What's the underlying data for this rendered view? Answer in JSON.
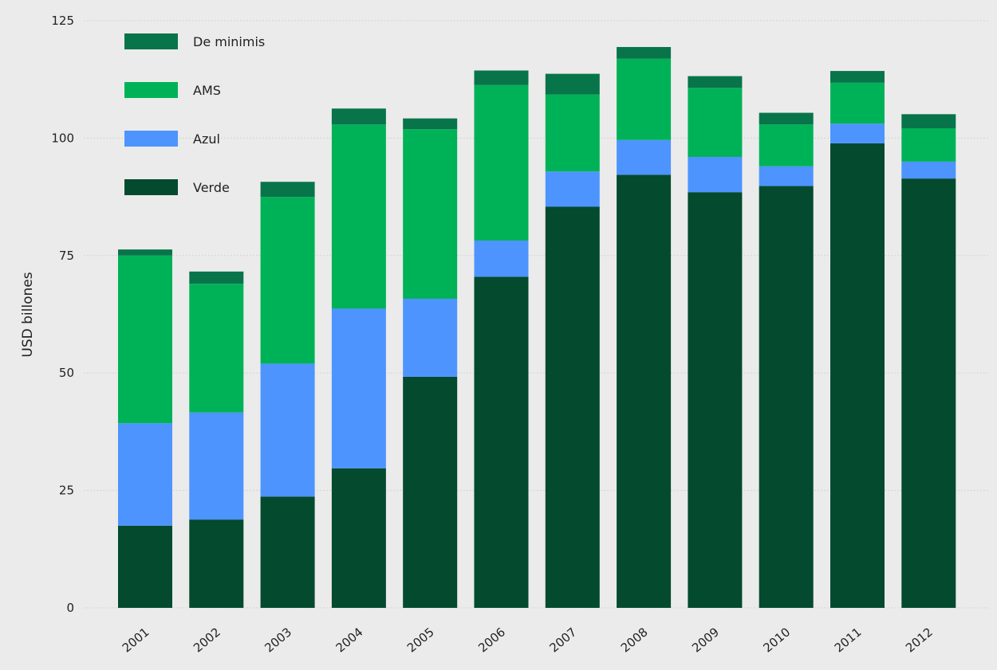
{
  "chart_data": {
    "type": "bar",
    "stacked": true,
    "title": "",
    "xlabel": "",
    "ylabel": "USD billones",
    "ylim": [
      0,
      125
    ],
    "yticks": [
      0,
      25,
      50,
      75,
      100,
      125
    ],
    "grid": true,
    "legend_position": "top-left",
    "categories": [
      "2001",
      "2002",
      "2003",
      "2004",
      "2005",
      "2006",
      "2007",
      "2008",
      "2009",
      "2010",
      "2011",
      "2012"
    ],
    "series": [
      {
        "name": "Verde",
        "color": "#034a2e",
        "values": [
          17.5,
          18.8,
          23.7,
          29.7,
          49.2,
          70.5,
          85.4,
          92.2,
          88.5,
          89.8,
          98.9,
          91.4
        ]
      },
      {
        "name": "Azul",
        "color": "#4d94ff",
        "values": [
          21.8,
          22.8,
          28.3,
          34.0,
          16.6,
          7.7,
          7.5,
          7.4,
          7.5,
          4.2,
          4.2,
          3.6
        ]
      },
      {
        "name": "AMS",
        "color": "#00b257",
        "values": [
          35.7,
          27.4,
          35.5,
          39.2,
          36.1,
          33.1,
          16.4,
          17.3,
          14.7,
          8.9,
          8.7,
          7.1
        ]
      },
      {
        "name": "De minimis",
        "color": "#08744a",
        "values": [
          1.3,
          2.6,
          3.2,
          3.4,
          2.3,
          3.1,
          4.4,
          2.5,
          2.5,
          2.5,
          2.5,
          3.0
        ]
      }
    ],
    "legend_order": [
      "De minimis",
      "AMS",
      "Azul",
      "Verde"
    ]
  }
}
